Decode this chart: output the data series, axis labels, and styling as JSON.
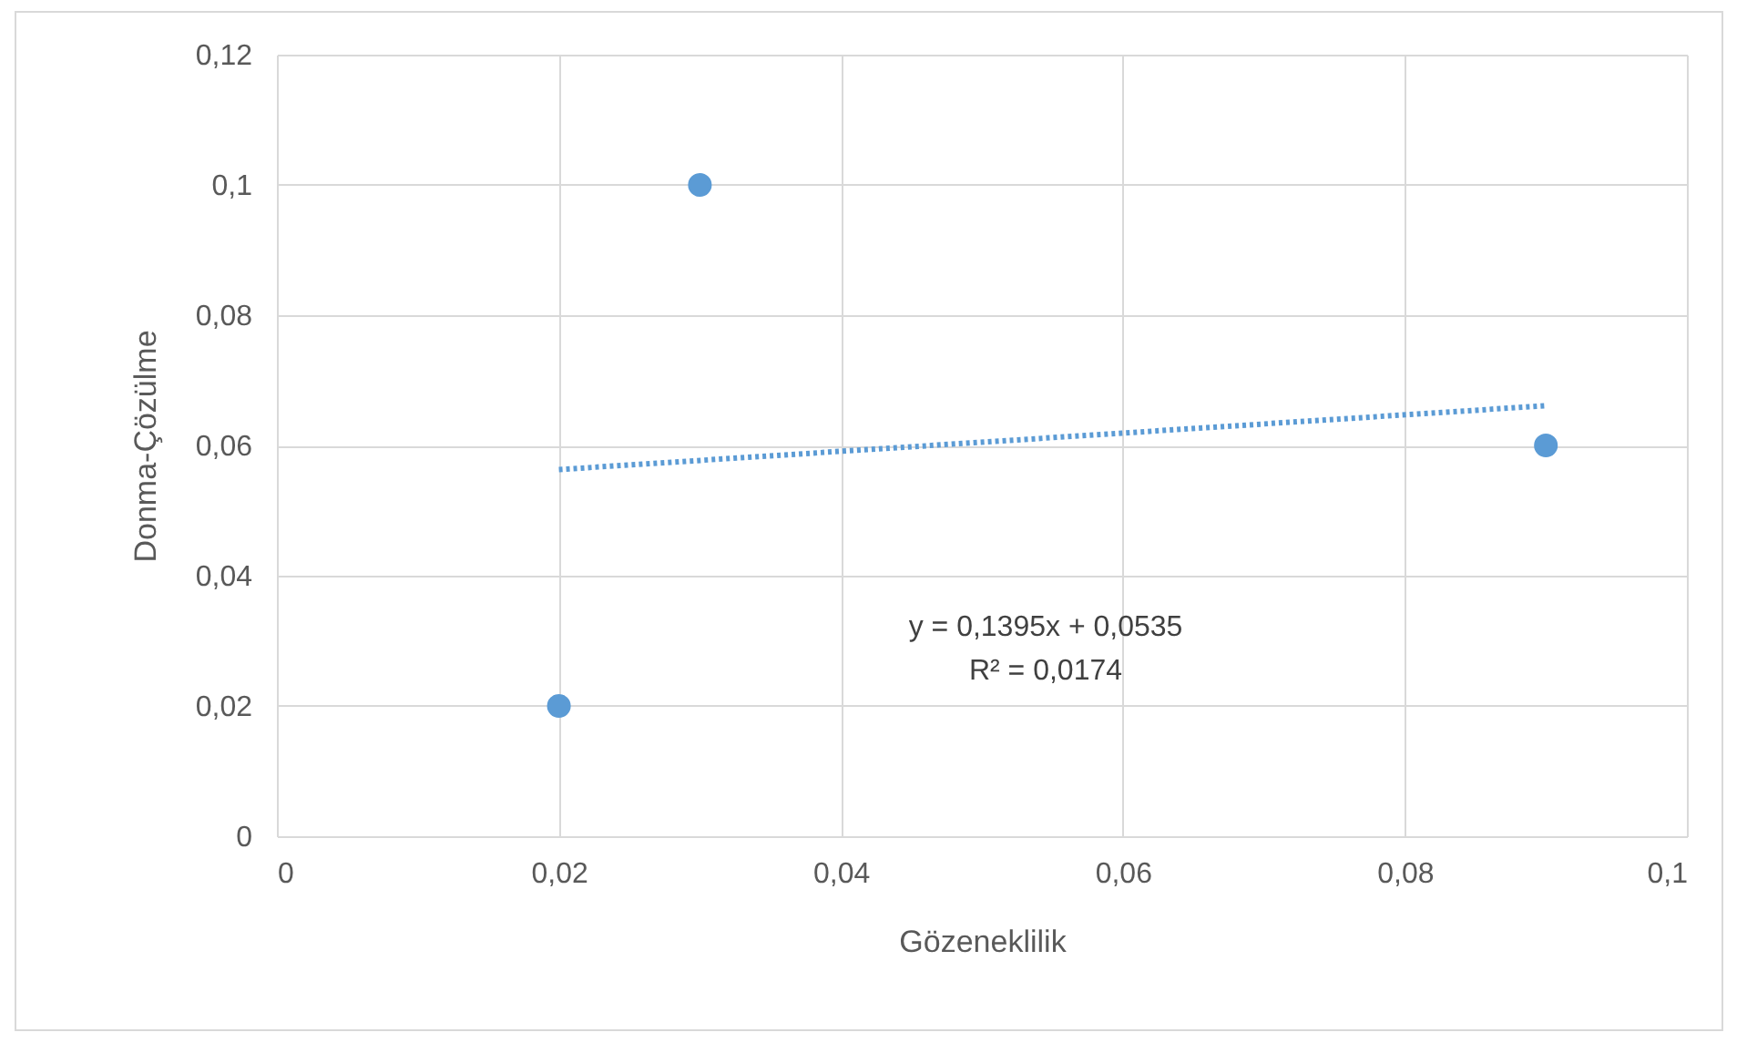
{
  "chart_data": {
    "type": "scatter",
    "xlabel": "Gözeneklilik",
    "ylabel": "Donma-Çözülme",
    "grid": true,
    "marker": "circle",
    "xlim": [
      0,
      0.1
    ],
    "ylim": [
      0,
      0.12
    ],
    "xticks": [
      0,
      {
        "value": 0.02,
        "label": "0,02"
      },
      {
        "value": 0.04,
        "label": "0,04"
      },
      {
        "value": 0.06,
        "label": "0,06"
      },
      {
        "value": 0.08,
        "label": "0,08"
      },
      {
        "value": 0.1,
        "label": "0,1"
      }
    ],
    "yticks": [
      0,
      {
        "value": 0.02,
        "label": "0,02"
      },
      {
        "value": 0.04,
        "label": "0,04"
      },
      {
        "value": 0.06,
        "label": "0,06"
      },
      {
        "value": 0.08,
        "label": "0,08"
      },
      {
        "value": 0.1,
        "label": "0,1"
      },
      {
        "value": 0.12,
        "label": "0,12"
      }
    ],
    "series": [
      {
        "color": "#5b9bd5",
        "x": [
          0.02,
          0.03,
          0.09
        ],
        "values": [
          0.02,
          0.1,
          0.06
        ]
      },
      {
        "type": "line",
        "color": "#5b9bd5",
        "line_style": "dotted",
        "marker": "none",
        "x": [
          0.02,
          0.09
        ],
        "values": [
          0.0563,
          0.0661
        ]
      }
    ],
    "annotations": [
      "y = 0,1395x + 0,0535",
      "R² = 0,0174"
    ]
  }
}
